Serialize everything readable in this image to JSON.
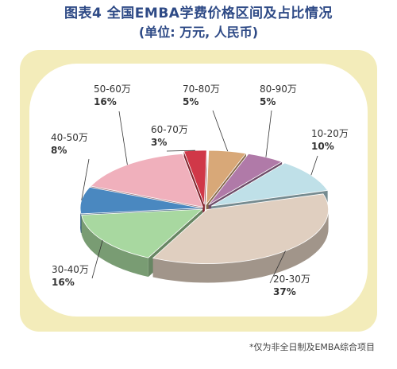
{
  "title": {
    "line1": "图表4  全国EMBA学费价格区间及占比情况",
    "line2": "(单位: 万元, 人民币)"
  },
  "footnote": "*仅为非全日制及EMBA综合项目",
  "chart_data": {
    "type": "pie",
    "style": "3d-exploded",
    "slices": [
      {
        "label": "70-80万",
        "percent_label": "5%",
        "value": 5,
        "color": "#d8a878"
      },
      {
        "label": "80-90万",
        "percent_label": "5%",
        "value": 5,
        "color": "#b07aa8"
      },
      {
        "label": "10-20万",
        "percent_label": "10%",
        "value": 10,
        "color": "#bfe0e8"
      },
      {
        "label": "20-30万",
        "percent_label": "37%",
        "value": 37,
        "color": "#e0cfc0"
      },
      {
        "label": "30-40万",
        "percent_label": "16%",
        "value": 16,
        "color": "#a8d8a0"
      },
      {
        "label": "40-50万",
        "percent_label": "8%",
        "value": 8,
        "color": "#4a88c0"
      },
      {
        "label": "50-60万",
        "percent_label": "16%",
        "value": 16,
        "color": "#f0b0bc"
      },
      {
        "label": "60-70万",
        "percent_label": "3%",
        "value": 3,
        "color": "#d03848"
      }
    ]
  }
}
